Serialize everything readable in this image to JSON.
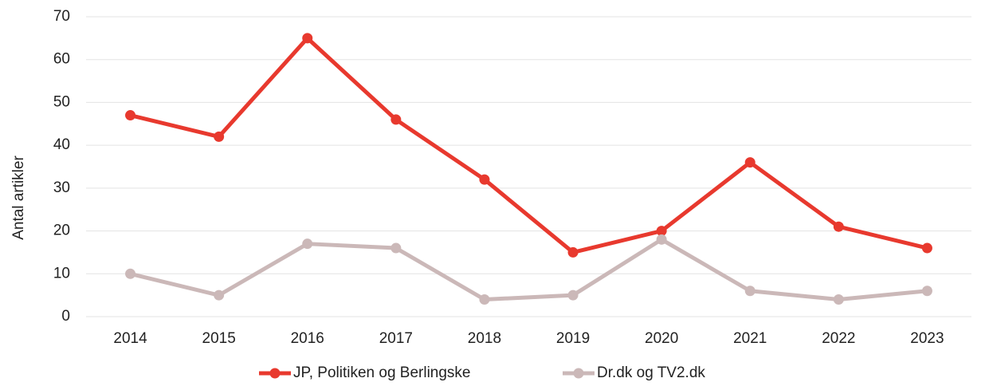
{
  "chart_data": {
    "type": "line",
    "y_label": "Antal artikler",
    "categories": [
      "2014",
      "2015",
      "2016",
      "2017",
      "2018",
      "2019",
      "2020",
      "2021",
      "2022",
      "2023"
    ],
    "series": [
      {
        "name": "JP, Politiken og Berlingske",
        "color": "#e8392e",
        "values": [
          47,
          42,
          65,
          46,
          32,
          15,
          20,
          36,
          21,
          16
        ]
      },
      {
        "name": "Dr.dk og TV2.dk",
        "color": "#cbb8b8",
        "values": [
          10,
          5,
          17,
          16,
          4,
          5,
          18,
          6,
          4,
          6
        ]
      }
    ],
    "ylim": [
      0,
      70
    ],
    "yticks": [
      0,
      10,
      20,
      30,
      40,
      50,
      60,
      70
    ],
    "grid": true,
    "legend": "bottom"
  }
}
